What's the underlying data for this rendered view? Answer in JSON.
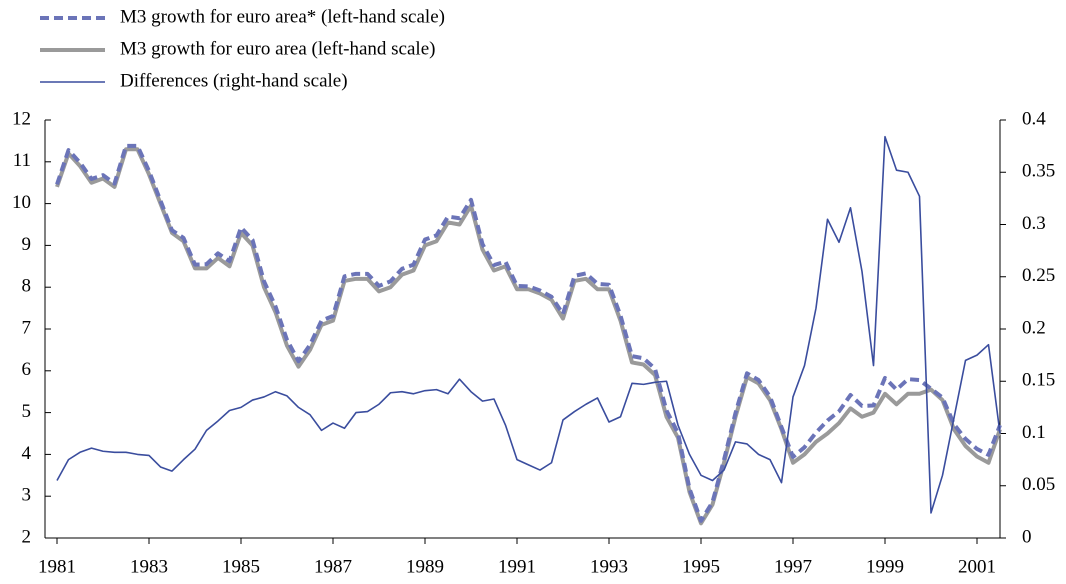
{
  "chart_data": {
    "type": "line",
    "x": [
      1981,
      1981.25,
      1981.5,
      1981.75,
      1982,
      1982.25,
      1982.5,
      1982.75,
      1983,
      1983.25,
      1983.5,
      1983.75,
      1984,
      1984.25,
      1984.5,
      1984.75,
      1985,
      1985.25,
      1985.5,
      1985.75,
      1986,
      1986.25,
      1986.5,
      1986.75,
      1987,
      1987.25,
      1987.5,
      1987.75,
      1988,
      1988.25,
      1988.5,
      1988.75,
      1989,
      1989.25,
      1989.5,
      1989.75,
      1990,
      1990.25,
      1990.5,
      1990.75,
      1991,
      1991.25,
      1991.5,
      1991.75,
      1992,
      1992.25,
      1992.5,
      1992.75,
      1993,
      1993.25,
      1993.5,
      1993.75,
      1994,
      1994.25,
      1994.5,
      1994.75,
      1995,
      1995.25,
      1995.5,
      1995.75,
      1996,
      1996.25,
      1996.5,
      1996.75,
      1997,
      1997.25,
      1997.5,
      1997.75,
      1998,
      1998.25,
      1998.5,
      1998.75,
      1999,
      1999.25,
      1999.5,
      1999.75,
      2000,
      2000.25,
      2000.5,
      2000.75,
      2001,
      2001.25,
      2001.5
    ],
    "series": [
      {
        "name": "M3 growth for euro area* (left-hand scale)",
        "color": "#6b74b8",
        "dash": true,
        "values": [
          10.46,
          11.28,
          10.98,
          10.59,
          10.68,
          10.48,
          11.38,
          11.38,
          10.78,
          10.07,
          9.36,
          9.18,
          8.54,
          8.55,
          8.81,
          8.62,
          9.43,
          9.13,
          8.14,
          7.54,
          6.74,
          6.23,
          6.62,
          7.2,
          7.31,
          8.26,
          8.32,
          8.32,
          8.03,
          8.14,
          8.44,
          8.54,
          9.14,
          9.24,
          9.69,
          9.65,
          10.09,
          9.03,
          8.53,
          8.61,
          8.03,
          8.02,
          7.92,
          7.77,
          7.36,
          8.27,
          8.33,
          8.08,
          8.06,
          7.32,
          6.35,
          6.3,
          6.05,
          5.05,
          4.51,
          3.18,
          2.41,
          2.86,
          3.87,
          4.99,
          5.94,
          5.78,
          5.38,
          4.65,
          3.94,
          4.17,
          4.52,
          4.81,
          5.03,
          5.42,
          5.16,
          5.17,
          5.83,
          5.55,
          5.8,
          5.78,
          5.57,
          5.36,
          4.72,
          4.37,
          4.13,
          3.99,
          4.7
        ]
      },
      {
        "name": "M3 growth for euro area (left-hand scale)",
        "color": "#9a9a9a",
        "values": [
          10.4,
          11.2,
          10.9,
          10.5,
          10.6,
          10.4,
          11.3,
          11.3,
          10.7,
          10.0,
          9.3,
          9.1,
          8.45,
          8.45,
          8.7,
          8.5,
          9.3,
          9.0,
          8.0,
          7.4,
          6.6,
          6.1,
          6.5,
          7.1,
          7.2,
          8.15,
          8.2,
          8.2,
          7.9,
          8.0,
          8.3,
          8.4,
          9.0,
          9.1,
          9.55,
          9.5,
          9.95,
          8.9,
          8.4,
          8.5,
          7.95,
          7.95,
          7.85,
          7.7,
          7.25,
          8.15,
          8.2,
          7.95,
          7.95,
          7.2,
          6.2,
          6.15,
          5.9,
          4.9,
          4.4,
          3.1,
          2.35,
          2.8,
          3.8,
          4.9,
          5.85,
          5.7,
          5.3,
          4.6,
          3.8,
          4.0,
          4.3,
          4.5,
          4.75,
          5.1,
          4.9,
          5.0,
          5.45,
          5.2,
          5.45,
          5.45,
          5.55,
          5.3,
          4.6,
          4.2,
          3.95,
          3.8,
          4.6
        ]
      },
      {
        "name": "Differences (right-hand scale)",
        "color": "#3a4d9e",
        "axis": "y2",
        "values": [
          0.055,
          0.075,
          0.082,
          0.086,
          0.083,
          0.082,
          0.082,
          0.08,
          0.079,
          0.068,
          0.064,
          0.075,
          0.085,
          0.103,
          0.112,
          0.122,
          0.125,
          0.132,
          0.135,
          0.14,
          0.136,
          0.125,
          0.118,
          0.103,
          0.11,
          0.105,
          0.12,
          0.121,
          0.128,
          0.139,
          0.14,
          0.138,
          0.141,
          0.142,
          0.138,
          0.152,
          0.14,
          0.131,
          0.133,
          0.108,
          0.075,
          0.07,
          0.065,
          0.072,
          0.113,
          0.121,
          0.128,
          0.134,
          0.111,
          0.116,
          0.148,
          0.147,
          0.149,
          0.15,
          0.108,
          0.08,
          0.06,
          0.055,
          0.065,
          0.092,
          0.09,
          0.08,
          0.075,
          0.053,
          0.135,
          0.165,
          0.22,
          0.305,
          0.283,
          0.316,
          0.255,
          0.165,
          0.384,
          0.352,
          0.35,
          0.327,
          0.024,
          0.06,
          0.115,
          0.17,
          0.175,
          0.185,
          0.1
        ]
      }
    ],
    "xlim": [
      1981,
      2001.5
    ],
    "xticks": [
      1981,
      1983,
      1985,
      1987,
      1989,
      1991,
      1993,
      1995,
      1997,
      1999,
      2001
    ],
    "ylim": [
      2,
      12
    ],
    "yticks": [
      2,
      3,
      4,
      5,
      6,
      7,
      8,
      9,
      10,
      11,
      12
    ],
    "y2lim": [
      0,
      0.4
    ],
    "y2ticks": [
      0,
      0.05,
      0.1,
      0.15,
      0.2,
      0.25,
      0.3,
      0.35,
      0.4
    ]
  }
}
